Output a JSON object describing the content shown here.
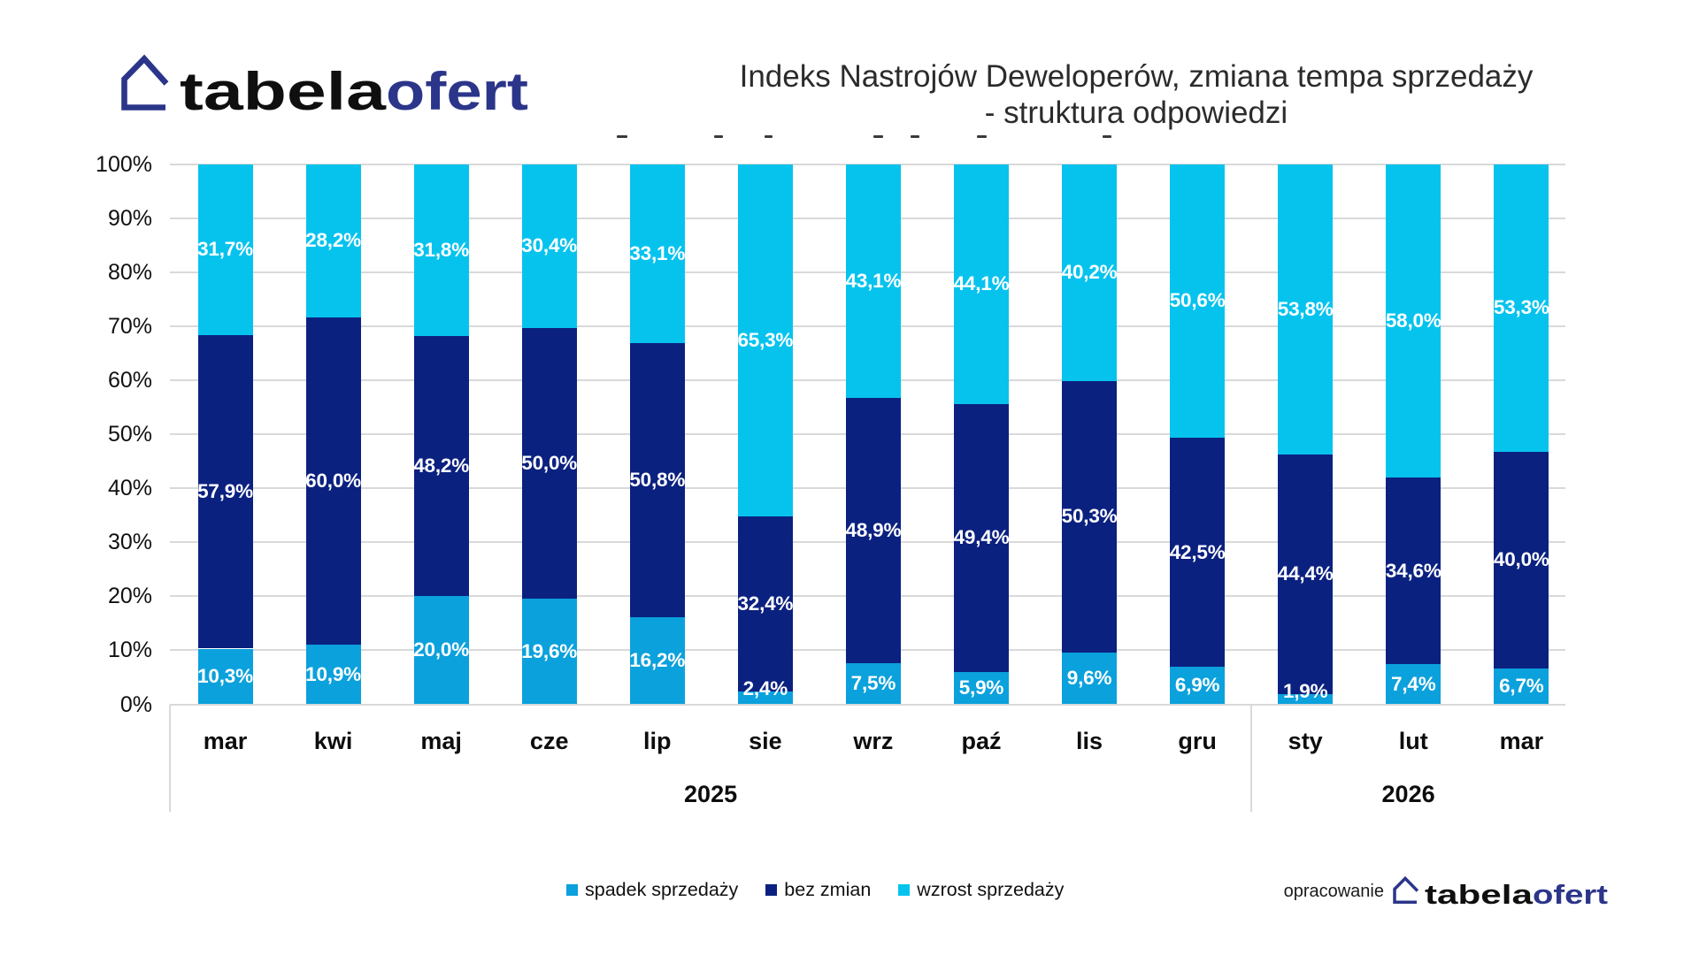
{
  "brand": {
    "name_black": "tabela",
    "name_blue": "ofert",
    "house_color": "#2b3589",
    "text_black": "#0f0f0f",
    "text_blue": "#2b3589"
  },
  "title": {
    "line1": "Indeks Nastrojów Deweloperów, zmiana tempa sprzedaży",
    "line2": "- struktura odpowiedzi"
  },
  "chart_data": {
    "type": "bar",
    "subtype": "stacked-percent-column",
    "title": "Indeks Nastrojów Deweloperów, zmiana tempa sprzedaży - struktura odpowiedzi",
    "categories": [
      "mar",
      "kwi",
      "maj",
      "cze",
      "lip",
      "sie",
      "wrz",
      "paź",
      "lis",
      "gru",
      "sty",
      "lut",
      "mar"
    ],
    "year_groups": [
      {
        "label": "2025",
        "count": 10
      },
      {
        "label": "2026",
        "count": 3
      }
    ],
    "series": [
      {
        "name": "spadek sprzedaży",
        "color": "#0ba1dc",
        "values": [
          10.3,
          10.9,
          20.0,
          19.6,
          16.2,
          2.4,
          7.5,
          5.9,
          9.6,
          6.9,
          1.9,
          7.4,
          6.7
        ]
      },
      {
        "name": "bez zmian",
        "color": "#0b2180",
        "values": [
          57.9,
          60.0,
          48.2,
          50.0,
          50.8,
          32.4,
          48.9,
          49.4,
          50.3,
          42.5,
          44.4,
          34.6,
          40.0
        ]
      },
      {
        "name": "wzrost sprzedaży",
        "color": "#06c3ee",
        "values": [
          31.7,
          28.2,
          31.8,
          30.4,
          33.1,
          65.3,
          43.1,
          44.1,
          40.2,
          50.6,
          53.8,
          58.0,
          53.3
        ]
      }
    ],
    "y_ticks": [
      "100%",
      "90%",
      "80%",
      "70%",
      "60%",
      "50%",
      "40%",
      "30%",
      "20%",
      "10%",
      "0%"
    ],
    "ylim": [
      0,
      100
    ],
    "grid": true,
    "gridline_color": "#d9d9d9",
    "data_label_format": "comma-decimal-percent",
    "legend_position": "bottom"
  },
  "legend": {
    "items": [
      {
        "label": "spadek sprzedaży",
        "color": "#0ba1dc"
      },
      {
        "label": "bez zmian",
        "color": "#0b2180"
      },
      {
        "label": "wzrost sprzedaży",
        "color": "#06c3ee"
      }
    ]
  },
  "footer": {
    "credit": "opracowanie"
  },
  "decor": {
    "clipped_text_marks": [
      {
        "x": 697,
        "w": 12
      },
      {
        "x": 807,
        "w": 10
      },
      {
        "x": 864,
        "w": 9
      },
      {
        "x": 987,
        "w": 11
      },
      {
        "x": 1029,
        "w": 10
      },
      {
        "x": 1104,
        "w": 11
      },
      {
        "x": 1246,
        "w": 10
      }
    ]
  }
}
